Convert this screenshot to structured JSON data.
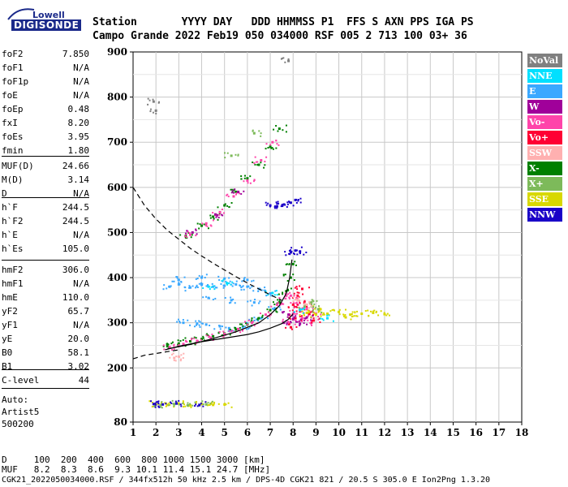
{
  "logo": {
    "top": "Lowell",
    "bottom": "DIGISONDE"
  },
  "header": {
    "row1": "Station       YYYY DAY   DDD HHMMSS P1  FFS S AXN PPS IGA PS",
    "row2": "Campo Grande 2022 Feb19 050 034000 RSF 005 2 713 100 03+ 36"
  },
  "params": [
    {
      "k": "foF2",
      "v": "7.850"
    },
    {
      "k": "foF1",
      "v": "N/A"
    },
    {
      "k": "foF1p",
      "v": "N/A"
    },
    {
      "k": "foE",
      "v": "N/A"
    },
    {
      "k": "foEp",
      "v": "0.48"
    },
    {
      "k": "fxI",
      "v": "8.20"
    },
    {
      "k": "foEs",
      "v": "3.95"
    },
    {
      "k": "fmin",
      "v": "1.80"
    },
    {
      "k": "MUF(D)",
      "v": "24.66"
    },
    {
      "k": "M(D)",
      "v": "3.14"
    },
    {
      "k": "D",
      "v": "N/A"
    },
    {
      "k": "h`F",
      "v": "244.5"
    },
    {
      "k": "h`F2",
      "v": "244.5"
    },
    {
      "k": "h`E",
      "v": "N/A"
    },
    {
      "k": "h`Es",
      "v": "105.0"
    },
    {
      "k": "hmF2",
      "v": "306.0"
    },
    {
      "k": "hmF1",
      "v": "N/A"
    },
    {
      "k": "hmE",
      "v": "110.0"
    },
    {
      "k": "yF2",
      "v": "65.7"
    },
    {
      "k": "yF1",
      "v": "N/A"
    },
    {
      "k": "yE",
      "v": "20.0"
    },
    {
      "k": "B0",
      "v": "58.1"
    },
    {
      "k": "B1",
      "v": "3.02"
    },
    {
      "k": "C-level",
      "v": "44"
    }
  ],
  "auto": {
    "line1": "Auto:",
    "line2": "Artist5",
    "line3": "500200"
  },
  "footer": {
    "d_row": "D     100  200  400  600  800 1000 1500 3000 [km]",
    "muf_row": "MUF   8.2  8.3  8.6  9.3 10.1 11.4 15.1 24.7 [MHz]",
    "file_row": "CGK21_2022050034000.RSF / 344fx512h 50 kHz 2.5 km / DPS-4D CGK21 821 / 20.5 S 305.0 E Ion2Png 1.3.20"
  },
  "legend": [
    {
      "label": "NoVal",
      "color": "#808080"
    },
    {
      "label": "NNE",
      "color": "#00e0ff"
    },
    {
      "label": "E",
      "color": "#3aa8ff"
    },
    {
      "label": "W",
      "color": "#a0009a"
    },
    {
      "label": "Vo-",
      "color": "#ff44aa"
    },
    {
      "label": "Vo+",
      "color": "#ff0033"
    },
    {
      "label": "SSW",
      "color": "#ffb0b0"
    },
    {
      "label": "X-",
      "color": "#008000"
    },
    {
      "label": "X+",
      "color": "#7dba5a"
    },
    {
      "label": "SSE",
      "color": "#d8d800"
    },
    {
      "label": "NNW",
      "color": "#1a00c8"
    }
  ],
  "chart_data": {
    "type": "scatter",
    "title": "",
    "xlabel": "",
    "ylabel": "",
    "xlim": [
      1,
      18
    ],
    "ylim": [
      80,
      900
    ],
    "xticks": [
      1,
      2,
      3,
      4,
      5,
      6,
      7,
      8,
      9,
      10,
      11,
      12,
      13,
      14,
      15,
      16,
      17,
      18
    ],
    "yticks": [
      80,
      200,
      300,
      400,
      500,
      600,
      700,
      800,
      900
    ],
    "grid": true,
    "legend_position": "right",
    "series": [
      {
        "name": "E",
        "color": "#3aa8ff",
        "points": [
          [
            2.6,
            380
          ],
          [
            3.0,
            385
          ],
          [
            3.5,
            378
          ],
          [
            4.0,
            384
          ],
          [
            4.5,
            380
          ],
          [
            5.0,
            382
          ],
          [
            5.5,
            385
          ],
          [
            6.0,
            380
          ],
          [
            6.5,
            375
          ],
          [
            7.0,
            365
          ],
          [
            3.2,
            300
          ],
          [
            3.8,
            298
          ],
          [
            4.2,
            296
          ],
          [
            4.8,
            292
          ],
          [
            5.2,
            288
          ],
          [
            5.8,
            290
          ],
          [
            6.2,
            300
          ],
          [
            6.6,
            310
          ],
          [
            7.2,
            330
          ],
          [
            3.0,
            395
          ],
          [
            4.0,
            400
          ],
          [
            5.0,
            398
          ],
          [
            6.0,
            395
          ],
          [
            4.3,
            355
          ],
          [
            5.3,
            350
          ],
          [
            6.3,
            345
          ]
        ]
      },
      {
        "name": "X-",
        "color": "#008000",
        "points": [
          [
            2.5,
            248
          ],
          [
            3.0,
            254
          ],
          [
            3.5,
            259
          ],
          [
            4.0,
            264
          ],
          [
            4.5,
            270
          ],
          [
            5.0,
            276
          ],
          [
            5.5,
            285
          ],
          [
            6.0,
            296
          ],
          [
            6.5,
            310
          ],
          [
            7.0,
            328
          ],
          [
            7.4,
            345
          ],
          [
            7.7,
            370
          ],
          [
            7.9,
            400
          ],
          [
            8.0,
            430
          ],
          [
            3.3,
            492
          ],
          [
            4.0,
            515
          ],
          [
            4.5,
            535
          ],
          [
            5.0,
            560
          ],
          [
            5.5,
            590
          ],
          [
            6.0,
            620
          ],
          [
            6.5,
            650
          ],
          [
            7.0,
            690
          ],
          [
            7.4,
            730
          ]
        ]
      },
      {
        "name": "Vo-",
        "color": "#ff44aa",
        "points": [
          [
            2.6,
            246
          ],
          [
            3.2,
            253
          ],
          [
            3.8,
            260
          ],
          [
            4.4,
            267
          ],
          [
            5.0,
            275
          ],
          [
            5.6,
            286
          ],
          [
            6.2,
            300
          ],
          [
            6.8,
            318
          ],
          [
            7.3,
            340
          ],
          [
            7.7,
            360
          ],
          [
            7.8,
            300
          ],
          [
            8.0,
            320
          ],
          [
            8.2,
            340
          ],
          [
            8.4,
            310
          ],
          [
            8.6,
            330
          ],
          [
            8.8,
            300
          ],
          [
            9.0,
            320
          ],
          [
            7.9,
            360
          ],
          [
            3.5,
            495
          ],
          [
            4.2,
            520
          ],
          [
            4.8,
            545
          ],
          [
            5.4,
            580
          ],
          [
            6.0,
            615
          ],
          [
            6.6,
            660
          ],
          [
            7.1,
            700
          ]
        ]
      },
      {
        "name": "Vo+",
        "color": "#ff0033",
        "points": [
          [
            7.9,
            290
          ],
          [
            8.1,
            310
          ],
          [
            8.3,
            330
          ],
          [
            8.5,
            345
          ],
          [
            8.7,
            320
          ],
          [
            8.9,
            305
          ],
          [
            8.2,
            360
          ],
          [
            8.4,
            375
          ],
          [
            8.0,
            340
          ]
        ]
      },
      {
        "name": "W",
        "color": "#a0009a",
        "points": [
          [
            7.6,
            300
          ],
          [
            7.8,
            318
          ],
          [
            8.0,
            308
          ],
          [
            8.3,
            298
          ],
          [
            8.6,
            312
          ],
          [
            3.6,
            500
          ],
          [
            4.6,
            540
          ],
          [
            5.6,
            590
          ]
        ]
      },
      {
        "name": "SSE",
        "color": "#d8d800",
        "points": [
          [
            8.6,
            322
          ],
          [
            9.0,
            318
          ],
          [
            9.5,
            320
          ],
          [
            10.0,
            324
          ],
          [
            10.5,
            318
          ],
          [
            11.0,
            320
          ],
          [
            11.5,
            322
          ],
          [
            12.0,
            319
          ],
          [
            9.2,
            330
          ],
          [
            10.3,
            312
          ],
          [
            2.0,
            120
          ],
          [
            2.5,
            118
          ],
          [
            3.0,
            121
          ],
          [
            3.5,
            117
          ],
          [
            4.0,
            120
          ],
          [
            4.5,
            118
          ],
          [
            5.0,
            119
          ]
        ]
      },
      {
        "name": "X+",
        "color": "#7dba5a",
        "points": [
          [
            8.5,
            335
          ],
          [
            8.8,
            345
          ],
          [
            9.1,
            330
          ],
          [
            2.2,
            118
          ],
          [
            2.8,
            120
          ],
          [
            3.4,
            117
          ],
          [
            4.2,
            119
          ],
          [
            5.3,
            670
          ],
          [
            6.3,
            720
          ]
        ]
      },
      {
        "name": "NNE",
        "color": "#00e0ff",
        "points": [
          [
            4.3,
            380
          ],
          [
            5.1,
            388
          ],
          [
            7.1,
            366
          ],
          [
            8.3,
            328
          ],
          [
            9.5,
            310
          ]
        ]
      },
      {
        "name": "NNW",
        "color": "#1a00c8",
        "points": [
          [
            7.0,
            560
          ],
          [
            7.3,
            558
          ],
          [
            7.6,
            562
          ],
          [
            7.9,
            566
          ],
          [
            8.1,
            572
          ],
          [
            7.9,
            456
          ],
          [
            8.1,
            460
          ],
          [
            8.3,
            458
          ],
          [
            1.9,
            120
          ],
          [
            2.3,
            119
          ],
          [
            2.9,
            121
          ],
          [
            3.9,
            118
          ]
        ]
      },
      {
        "name": "SSW",
        "color": "#ffb0b0",
        "points": [
          [
            2.8,
            222
          ],
          [
            3.0,
            225
          ],
          [
            8.2,
            350
          ],
          [
            8.6,
            340
          ]
        ]
      },
      {
        "name": "NoVal",
        "color": "#808080",
        "points": [
          [
            1.9,
            790
          ],
          [
            7.8,
            880
          ],
          [
            2.0,
            770
          ]
        ]
      }
    ],
    "lines": [
      {
        "style": "dashed",
        "points": [
          [
            1.0,
            600
          ],
          [
            1.5,
            560
          ],
          [
            2.0,
            530
          ],
          [
            2.5,
            505
          ],
          [
            3.0,
            485
          ],
          [
            3.5,
            465
          ],
          [
            4.0,
            448
          ],
          [
            4.5,
            432
          ],
          [
            5.0,
            417
          ],
          [
            5.5,
            402
          ],
          [
            6.0,
            388
          ],
          [
            6.5,
            375
          ],
          [
            7.0,
            362
          ],
          [
            7.5,
            350
          ]
        ]
      },
      {
        "style": "dashed",
        "points": [
          [
            1.0,
            220
          ],
          [
            1.5,
            228
          ],
          [
            2.0,
            232
          ],
          [
            2.5,
            236
          ],
          [
            3.0,
            240
          ]
        ]
      },
      {
        "style": "solid",
        "points": [
          [
            2.4,
            240
          ],
          [
            3.0,
            248
          ],
          [
            4.0,
            258
          ],
          [
            5.0,
            266
          ],
          [
            6.0,
            274
          ],
          [
            6.5,
            280
          ],
          [
            7.0,
            288
          ],
          [
            7.5,
            298
          ],
          [
            7.8,
            308
          ],
          [
            8.0,
            320
          ]
        ]
      },
      {
        "style": "solid",
        "points": [
          [
            2.5,
            242
          ],
          [
            3.5,
            252
          ],
          [
            4.5,
            265
          ],
          [
            5.5,
            280
          ],
          [
            6.5,
            300
          ],
          [
            7.0,
            318
          ],
          [
            7.4,
            338
          ],
          [
            7.7,
            365
          ],
          [
            7.85,
            400
          ],
          [
            7.95,
            440
          ]
        ]
      }
    ]
  }
}
